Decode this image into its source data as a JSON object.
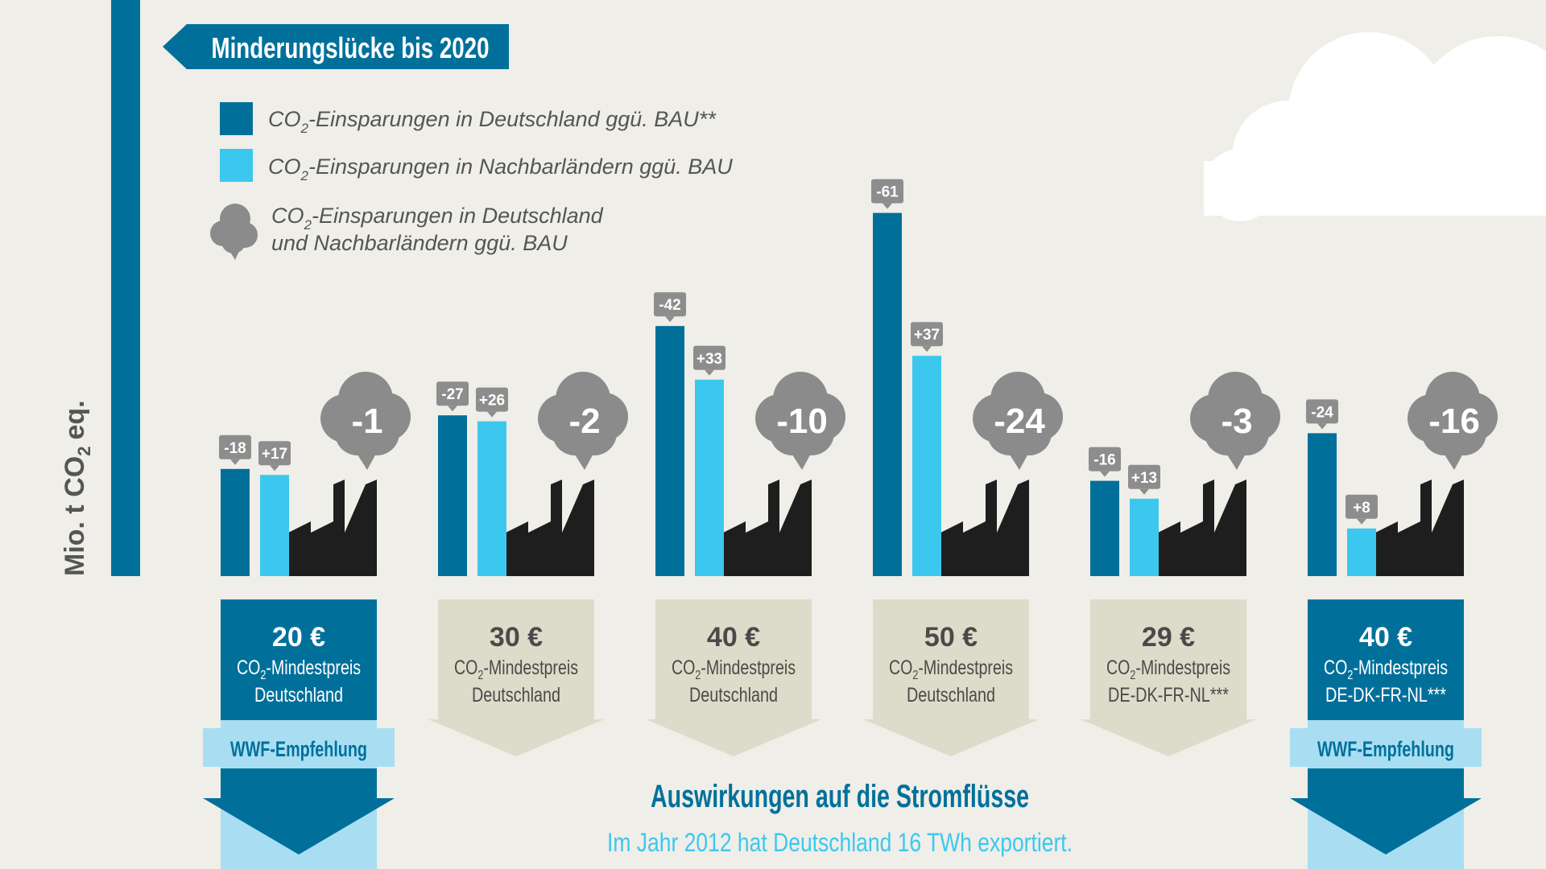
{
  "chart_data": {
    "type": "bar",
    "title": "Minderungslücke bis 2020",
    "ylabel_main": "Mio. t CO",
    "ylabel_sub": "2",
    "ylabel_tail": "eq.",
    "legend": {
      "items": [
        {
          "pre": "CO",
          "sub": "2",
          "post": "-Einsparungen in Deutschland ggü. BAU**"
        },
        {
          "pre": "CO",
          "sub": "2",
          "post": "-Einsparungen in Nachbarländern ggü. BAU"
        },
        {
          "pre": "CO",
          "sub": "2",
          "post": "-Einsparungen in Deutschland",
          "line2": "und Nachbarländern ggü. BAU"
        }
      ]
    },
    "series": [
      {
        "values": [
          -18,
          -27,
          -42,
          -61,
          -16,
          -24
        ],
        "labels": [
          "-18",
          "-27",
          "-42",
          "-61",
          "-16",
          "-24"
        ]
      },
      {
        "values": [
          17,
          26,
          33,
          37,
          13,
          8
        ],
        "labels": [
          "+17",
          "+26",
          "+33",
          "+37",
          "+13",
          "+8"
        ]
      },
      {
        "values": [
          -1,
          -2,
          -10,
          -24,
          -3,
          -16
        ],
        "labels": [
          "-1",
          "-2",
          "-10",
          "-24",
          "-3",
          "-16"
        ]
      }
    ],
    "categories": [
      {
        "price": "20 €",
        "line1_pre": "CO",
        "line1_sub": "2",
        "line1_post": "-Mindestpreis",
        "line2": "Deutschland",
        "wwf": "WWF-Empfehlung"
      },
      {
        "price": "30 €",
        "line1_pre": "CO",
        "line1_sub": "2",
        "line1_post": "-Mindestpreis",
        "line2": "Deutschland",
        "wwf": ""
      },
      {
        "price": "40 €",
        "line1_pre": "CO",
        "line1_sub": "2",
        "line1_post": "-Mindestpreis",
        "line2": "Deutschland",
        "wwf": ""
      },
      {
        "price": "50 €",
        "line1_pre": "CO",
        "line1_sub": "2",
        "line1_post": "-Mindestpreis",
        "line2": "Deutschland",
        "wwf": ""
      },
      {
        "price": "29 €",
        "line1_pre": "CO",
        "line1_sub": "2",
        "line1_post": "-Mindestpreis",
        "line2": "DE-DK-FR-NL***",
        "wwf": ""
      },
      {
        "price": "40 €",
        "line1_pre": "CO",
        "line1_sub": "2",
        "line1_post": "-Mindestpreis",
        "line2": "DE-DK-FR-NL***",
        "wwf": "WWF-Empfehlung"
      }
    ],
    "footer": {
      "heading": "Auswirkungen auf die Stromflüsse",
      "text": "Im Jahr 2012 hat Deutschland 16 TWh exportiert."
    },
    "colors": {
      "background": "#efeee8",
      "germany": "#00709b",
      "neighbors": "#3cc8ee",
      "combined": "#8b8b8b",
      "factory": "#1e1e1e",
      "arrow_highlight": "#00709b",
      "arrow_neutral": "#dddbc9",
      "wwf_band": "#a9def2",
      "value_badge": "#8d8d8d"
    }
  }
}
